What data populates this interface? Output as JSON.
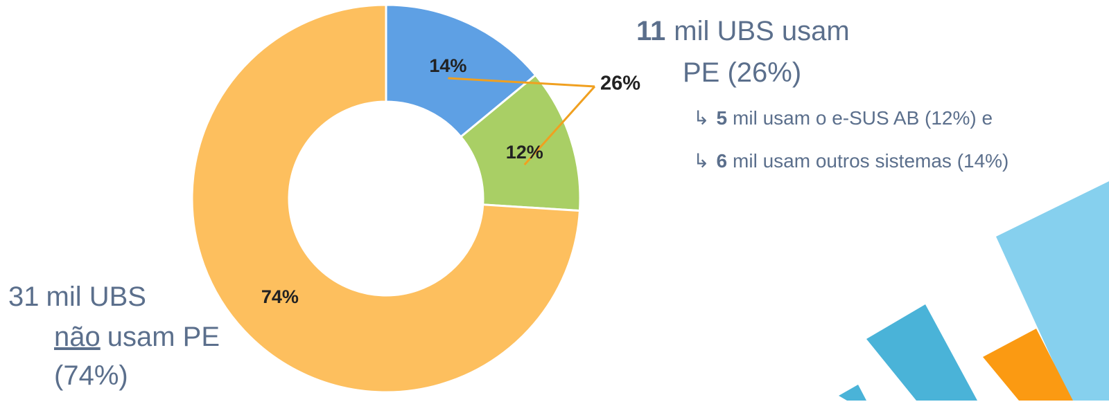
{
  "chart_data": {
    "type": "donut",
    "values": [
      14,
      12,
      74
    ],
    "value_labels": [
      "14%",
      "12%",
      "74%"
    ],
    "colors": [
      "#5ea0e4",
      "#a9cf65",
      "#fdbf5e"
    ],
    "group_label": "26%",
    "group_color": "#f0a020"
  },
  "annotations": {
    "right": {
      "number": "11",
      "line1": "mil UBS usam",
      "line2": "PE (26%)",
      "items": [
        {
          "bullet": "↳",
          "number": "5",
          "text": "mil usam o e-SUS AB (12%) e"
        },
        {
          "bullet": "↳",
          "number": "6",
          "text": "mil usam outros sistemas (14%)"
        }
      ]
    },
    "left": {
      "number": "31",
      "line1": "mil UBS",
      "underlined": "não",
      "line2": "usam PE",
      "line3": "(74%)"
    }
  }
}
